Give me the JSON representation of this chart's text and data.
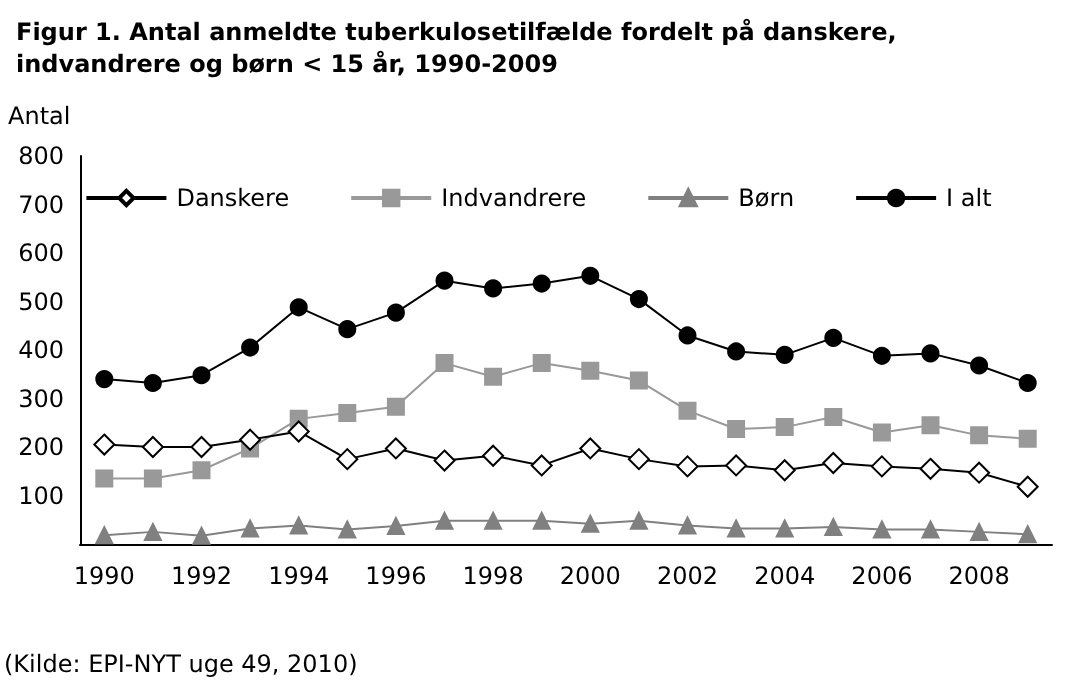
{
  "chart_data": {
    "type": "line",
    "title": "Figur 1. Antal anmeldte tuberkulosetilfælde fordelt på danskere,\nindvandrere og børn < 15 år, 1990-2009",
    "ylabel": "Antal",
    "categories": [
      "1990",
      null,
      "1992",
      null,
      "1994",
      null,
      "1996",
      null,
      "1998",
      null,
      "2000",
      null,
      "2002",
      null,
      "2004",
      null,
      "2006",
      null,
      "2008",
      null
    ],
    "series": [
      {
        "name": "Danskere",
        "color": "#000000",
        "marker": "diamond",
        "values": [
          205,
          200,
          200,
          215,
          232,
          175,
          197,
          172,
          182,
          162,
          197,
          175,
          160,
          162,
          152,
          167,
          160,
          155,
          147,
          118
        ]
      },
      {
        "name": "Indvandrere",
        "color": "#999999",
        "marker": "square",
        "values": [
          135,
          135,
          152,
          197,
          258,
          270,
          283,
          373,
          345,
          373,
          357,
          337,
          275,
          237,
          241,
          262,
          230,
          245,
          224,
          217
        ]
      },
      {
        "name": "Børn",
        "color": "#808080",
        "marker": "triangle",
        "values": [
          18,
          25,
          17,
          32,
          38,
          30,
          37,
          48,
          48,
          48,
          42,
          48,
          38,
          32,
          32,
          35,
          30,
          30,
          25,
          20
        ]
      },
      {
        "name": "I alt",
        "color": "#000000",
        "marker": "circle",
        "values": [
          340,
          332,
          348,
          405,
          488,
          443,
          477,
          543,
          527,
          537,
          553,
          505,
          430,
          397,
          390,
          425,
          388,
          393,
          368,
          332
        ]
      }
    ],
    "ylim": [
      0,
      800
    ],
    "yticks": [
      100,
      200,
      300,
      400,
      500,
      600,
      700,
      800
    ],
    "legend": "top",
    "grid": false,
    "annotations": [
      "(Kilde: EPI-NYT uge 49, 2010)"
    ]
  }
}
